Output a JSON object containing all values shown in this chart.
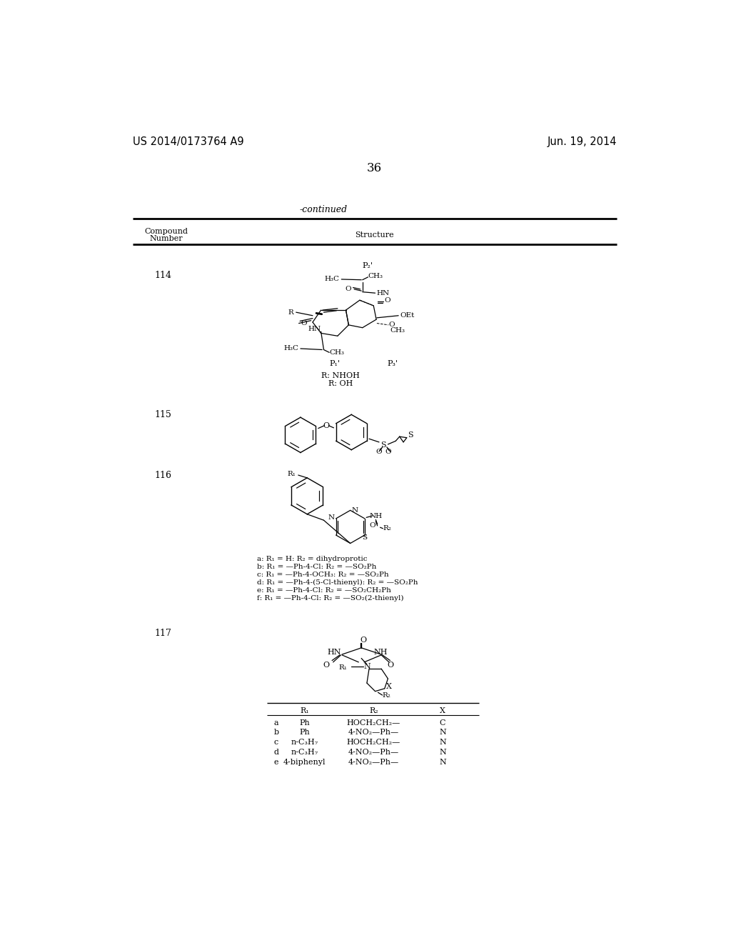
{
  "background_color": "#ffffff",
  "header_left": "US 2014/0173764 A9",
  "header_right": "Jun. 19, 2014",
  "page_number": "36",
  "continued_text": "-continued",
  "table_col1_header": "Compound\nNumber",
  "table_col2_header": "Structure",
  "compound_numbers": [
    "114",
    "115",
    "116",
    "117"
  ],
  "ann116": [
    "a: R₁ = H: R₂ = dihydroprotic",
    "b: R₁ = —Ph-4-Cl: R₂ = —SO₂Ph",
    "c: R₁ = —Ph-4-OCH₃: R₂ = —SO₂Ph",
    "d: R₁ = —Ph-4-(5-Cl-thienyl): R₂ = —SO₂Ph",
    "e: R₁ = —Ph-4-Cl: R₂ = —SO₂CH₂Ph",
    "f: R₁ = —Ph-4-Cl: R₂ = —SO₂(2-thienyl)"
  ],
  "rows117": [
    [
      "a",
      "Ph",
      "HOCH₂CH₂—",
      "C"
    ],
    [
      "b",
      "Ph",
      "4-NO₂—Ph—",
      "N"
    ],
    [
      "c",
      "n-C₃H₇",
      "HOCH₂CH₂—",
      "N"
    ],
    [
      "d",
      "n-C₃H₇",
      "4-NO₂—Ph—",
      "N"
    ],
    [
      "e",
      "4-biphenyl",
      "4-NO₂—Ph—",
      "N"
    ]
  ]
}
